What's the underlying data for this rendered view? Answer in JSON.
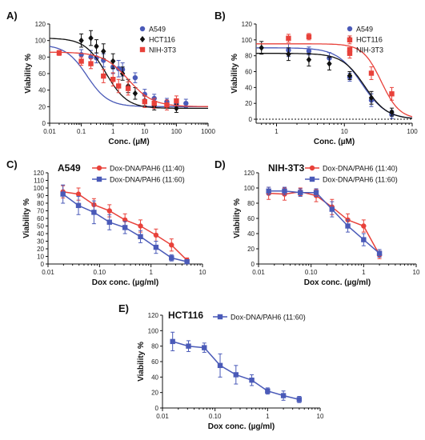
{
  "chart_data": [
    {
      "panel": "A)",
      "type": "scatter",
      "title": "",
      "xlabel": "Conc. (µM)",
      "ylabel": "Viability %",
      "xscale": "log",
      "xlim": [
        0.01,
        1000
      ],
      "ylim": [
        0,
        120
      ],
      "xticks": [
        "0.01",
        "0.1",
        "1",
        "10",
        "100",
        "1000"
      ],
      "yticks": [
        "0",
        "20",
        "40",
        "60",
        "80",
        "100",
        "120"
      ],
      "legend": "top-right",
      "series": [
        {
          "name": "A549",
          "color": "#4a5ab8",
          "marker": "circle",
          "fit": [
            0.15,
            20,
            1.3,
            95
          ],
          "points": [
            [
              0.1,
              83,
              6
            ],
            [
              0.2,
              80,
              8
            ],
            [
              0.3,
              79,
              6
            ],
            [
              0.5,
              76,
              8
            ],
            [
              1,
              68,
              8
            ],
            [
              1.5,
              66,
              10
            ],
            [
              2,
              65,
              8
            ],
            [
              5,
              55,
              6
            ],
            [
              10,
              35,
              6
            ],
            [
              20,
              30,
              5
            ],
            [
              50,
              26,
              4
            ],
            [
              100,
              23,
              5
            ],
            [
              200,
              24,
              5
            ]
          ]
        },
        {
          "name": "HCT116",
          "color": "#111111",
          "marker": "diamond",
          "fit": [
            0.6,
            18,
            1.3,
            103
          ],
          "points": [
            [
              0.1,
              100,
              8
            ],
            [
              0.2,
              103,
              9
            ],
            [
              0.3,
              93,
              8
            ],
            [
              0.5,
              87,
              9
            ],
            [
              1,
              75,
              9
            ],
            [
              2,
              60,
              8
            ],
            [
              3,
              45,
              8
            ],
            [
              5,
              36,
              7
            ],
            [
              10,
              27,
              6
            ],
            [
              20,
              21,
              5
            ],
            [
              100,
              18,
              5
            ]
          ]
        },
        {
          "name": "NIH-3T3",
          "color": "#e8413a",
          "marker": "square",
          "fit": [
            3,
            20,
            1.1,
            86
          ],
          "points": [
            [
              0.02,
              85,
              3
            ],
            [
              0.1,
              75,
              5
            ],
            [
              0.2,
              72,
              6
            ],
            [
              0.5,
              57,
              8
            ],
            [
              1,
              53,
              8
            ],
            [
              1.5,
              45,
              8
            ],
            [
              3,
              42,
              8
            ],
            [
              10,
              26,
              7
            ],
            [
              20,
              24,
              6
            ],
            [
              50,
              22,
              6
            ],
            [
              100,
              27,
              6
            ]
          ]
        }
      ]
    },
    {
      "panel": "B)",
      "type": "scatter",
      "title": "",
      "xlabel": "Conc. (µM)",
      "ylabel": "Viability %",
      "xscale": "log",
      "xlim": [
        0.5,
        100
      ],
      "ylim": [
        -5,
        120
      ],
      "xticks": [
        "1",
        "10",
        "100"
      ],
      "yticks": [
        "0",
        "20",
        "40",
        "60",
        "80",
        "100",
        "120"
      ],
      "legend": "top-right",
      "series": [
        {
          "name": "A549",
          "color": "#4a5ab8",
          "marker": "circle",
          "fit": [
            18,
            0,
            2.4,
            90
          ],
          "points": [
            [
              1.5,
              87,
              8
            ],
            [
              3,
              86,
              5
            ],
            [
              6,
              77,
              7
            ],
            [
              12,
              53,
              5
            ],
            [
              25,
              24,
              8
            ],
            [
              50,
              6,
              5
            ]
          ]
        },
        {
          "name": "HCT116",
          "color": "#111111",
          "marker": "diamond",
          "fit": [
            20,
            0,
            2.6,
            83
          ],
          "points": [
            [
              0.6,
              90,
              8
            ],
            [
              1.5,
              82,
              8
            ],
            [
              3,
              75,
              8
            ],
            [
              6,
              70,
              8
            ],
            [
              12,
              55,
              5
            ],
            [
              25,
              27,
              8
            ],
            [
              50,
              9,
              5
            ]
          ]
        },
        {
          "name": "NIH-3T3",
          "color": "#e8413a",
          "marker": "square",
          "fit": [
            35,
            0,
            3.2,
            95
          ],
          "points": [
            [
              1.5,
              102,
              5
            ],
            [
              3,
              104,
              4
            ],
            [
              12,
              100,
              5
            ],
            [
              12,
              83,
              6
            ],
            [
              25,
              58,
              8
            ],
            [
              50,
              32,
              8
            ]
          ]
        }
      ]
    },
    {
      "panel": "C)",
      "type": "line",
      "title": "A549",
      "xlabel": "Dox conc. (µg/ml)",
      "ylabel": "Viability %",
      "xscale": "log",
      "xlim": [
        0.01,
        10
      ],
      "ylim": [
        0,
        120
      ],
      "xticks": [
        "0.01",
        "0.10",
        "1",
        "10"
      ],
      "yticks": [
        "0",
        "10",
        "20",
        "30",
        "40",
        "50",
        "60",
        "70",
        "80",
        "90",
        "100",
        "110",
        "120"
      ],
      "legend": "top",
      "series": [
        {
          "name": "Dox-DNA/PAH6 (11:40)",
          "color": "#e8413a",
          "marker": "circle",
          "points": [
            [
              0.0195,
              95,
              8
            ],
            [
              0.039,
              92,
              8
            ],
            [
              0.078,
              78,
              8
            ],
            [
              0.156,
              70,
              8
            ],
            [
              0.3125,
              58,
              8
            ],
            [
              0.625,
              50,
              8
            ],
            [
              1.25,
              38,
              8
            ],
            [
              2.5,
              25,
              8
            ],
            [
              5,
              5,
              3
            ]
          ]
        },
        {
          "name": "Dox-DNA/PAH6 (11:60)",
          "color": "#4a5ab8",
          "marker": "square",
          "points": [
            [
              0.0195,
              92,
              12
            ],
            [
              0.039,
              77,
              12
            ],
            [
              0.078,
              68,
              15
            ],
            [
              0.156,
              55,
              10
            ],
            [
              0.3125,
              48,
              8
            ],
            [
              0.625,
              36,
              8
            ],
            [
              1.25,
              22,
              8
            ],
            [
              2.5,
              8,
              4
            ],
            [
              5,
              3,
              2
            ]
          ]
        }
      ]
    },
    {
      "panel": "D)",
      "type": "line",
      "title": "NIH-3T3",
      "xlabel": "Dox conc. (µg/ml)",
      "ylabel": "Viability %",
      "xscale": "log",
      "xlim": [
        0.01,
        10
      ],
      "ylim": [
        0,
        120
      ],
      "xticks": [
        "0.01",
        "0.10",
        "1",
        "10"
      ],
      "yticks": [
        "0",
        "20",
        "40",
        "60",
        "80",
        "100",
        "120"
      ],
      "legend": "top",
      "series": [
        {
          "name": "Dox-DNA/PAH6 (11:40)",
          "color": "#e8413a",
          "marker": "circle",
          "points": [
            [
              0.0156,
              93,
              8
            ],
            [
              0.03125,
              92,
              8
            ],
            [
              0.0625,
              95,
              5
            ],
            [
              0.125,
              90,
              8
            ],
            [
              0.25,
              75,
              10
            ],
            [
              0.5,
              58,
              8
            ],
            [
              1,
              50,
              8
            ],
            [
              2,
              12,
              5
            ]
          ]
        },
        {
          "name": "Dox-DNA/PAH6 (11:60)",
          "color": "#4a5ab8",
          "marker": "square",
          "points": [
            [
              0.0156,
              96,
              5
            ],
            [
              0.03125,
              96,
              5
            ],
            [
              0.0625,
              94,
              5
            ],
            [
              0.125,
              94,
              5
            ],
            [
              0.25,
              72,
              10
            ],
            [
              0.5,
              50,
              8
            ],
            [
              1,
              32,
              8
            ],
            [
              2,
              14,
              5
            ]
          ]
        }
      ]
    },
    {
      "panel": "E)",
      "type": "line",
      "title": "HCT116",
      "xlabel": "Dox conc. (µg/ml)",
      "ylabel": "Viability %",
      "xscale": "log",
      "xlim": [
        0.01,
        10
      ],
      "ylim": [
        0,
        120
      ],
      "xticks": [
        "0.01",
        "0.10",
        "1",
        "10"
      ],
      "yticks": [
        "0",
        "20",
        "40",
        "60",
        "80",
        "100",
        "120"
      ],
      "legend": "top",
      "series": [
        {
          "name": "Dox-DNA/PAH6 (11:60)",
          "color": "#4a5ab8",
          "marker": "square",
          "points": [
            [
              0.0156,
              86,
              12
            ],
            [
              0.03125,
              80,
              7
            ],
            [
              0.0625,
              78,
              6
            ],
            [
              0.125,
              55,
              15
            ],
            [
              0.25,
              43,
              12
            ],
            [
              0.5,
              36,
              7
            ],
            [
              1,
              22,
              4
            ],
            [
              2,
              16,
              6
            ],
            [
              4,
              11,
              4
            ]
          ]
        }
      ]
    }
  ]
}
